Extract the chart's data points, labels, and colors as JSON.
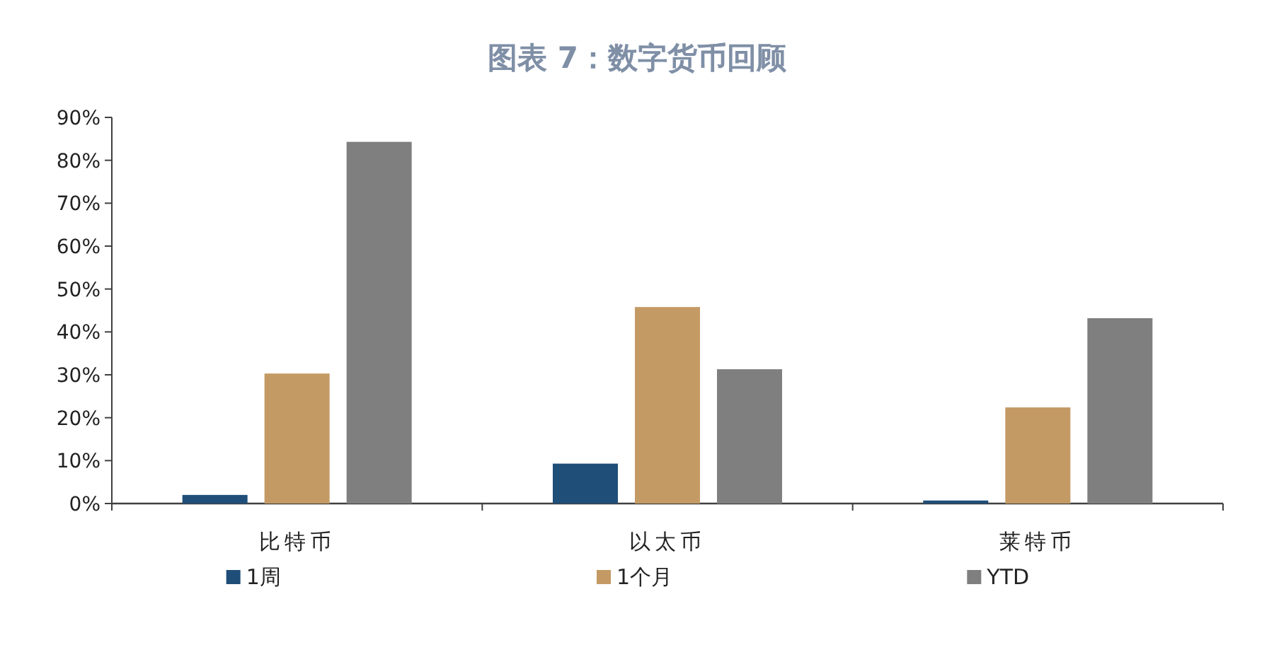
{
  "chart_data": {
    "type": "bar",
    "title": "图表 7：数字货币回顾",
    "categories": [
      "比特币",
      "以太币",
      "莱特币"
    ],
    "series": [
      {
        "name": "1周",
        "color": "#1f4e79",
        "values": [
          2.0,
          9.3,
          0.7
        ]
      },
      {
        "name": "1个月",
        "color": "#c49a64",
        "values": [
          30.3,
          45.8,
          22.4
        ]
      },
      {
        "name": "YTD",
        "color": "#7f7f7f",
        "values": [
          84.3,
          31.3,
          43.2
        ]
      }
    ],
    "ylim": [
      0,
      90
    ],
    "yticks": [
      {
        "value": 0,
        "label": "0%"
      },
      {
        "value": 10,
        "label": "10%"
      },
      {
        "value": 20,
        "label": "20%"
      },
      {
        "value": 30,
        "label": "30%"
      },
      {
        "value": 40,
        "label": "40%"
      },
      {
        "value": 50,
        "label": "50%"
      },
      {
        "value": 60,
        "label": "60%"
      },
      {
        "value": 70,
        "label": "70%"
      },
      {
        "value": 80,
        "label": "80%"
      },
      {
        "value": 90,
        "label": "90%"
      }
    ],
    "grid": false,
    "legend": "bottom"
  }
}
